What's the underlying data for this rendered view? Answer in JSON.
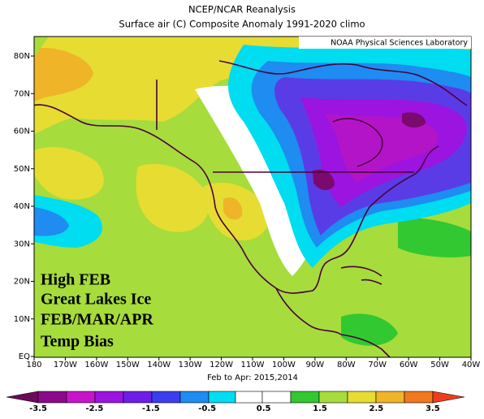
{
  "header": {
    "title": "NCEP/NCAR Reanalysis",
    "subtitle": "Surface air (C) Composite Anomaly 1991-2020 climo",
    "credit": "NOAA Physical Sciences Laboratory"
  },
  "map": {
    "lat_labels": [
      "80N",
      "70N",
      "60N",
      "50N",
      "40N",
      "30N",
      "20N",
      "10N",
      "EQ"
    ],
    "lon_labels": [
      "180",
      "170W",
      "160W",
      "150W",
      "140W",
      "130W",
      "120W",
      "110W",
      "100W",
      "90W",
      "80W",
      "70W",
      "60W",
      "50W",
      "40W"
    ],
    "caption": "Feb to Apr: 2015,2014",
    "overlay": [
      "High FEB",
      "Great Lakes Ice",
      "FEB/MAR/APR",
      "Temp Bias"
    ]
  },
  "colorbar": {
    "labels": [
      "-3.5",
      "-2.5",
      "-1.5",
      "-0.5",
      "0.5",
      "1.5",
      "2.5",
      "3.5"
    ]
  }
}
